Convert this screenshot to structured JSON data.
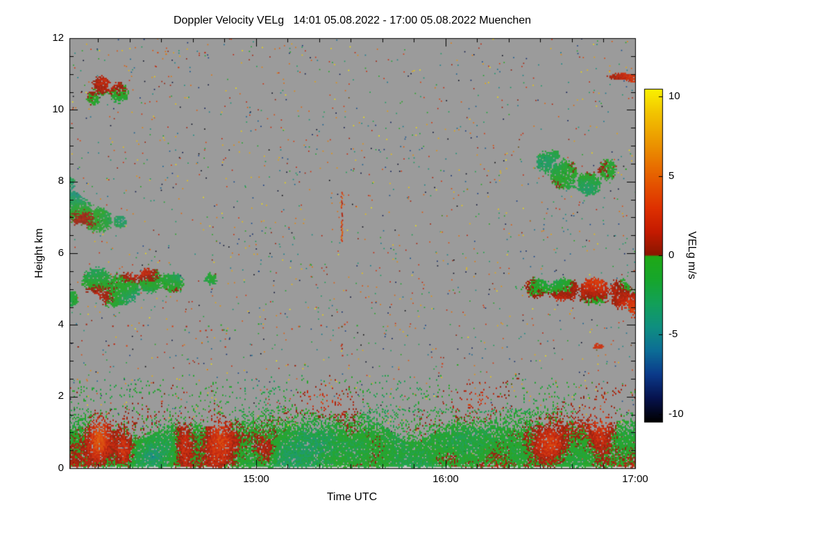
{
  "chart_data": {
    "type": "heatmap",
    "title": "Doppler Velocity VELg   14:01 05.08.2022 - 17:00 05.08.2022 Muenchen",
    "xlabel": "Time UTC",
    "ylabel": "Height km",
    "x_range": [
      14.0167,
      17.0
    ],
    "x_ticks": [
      {
        "v": 15,
        "label": "15:00"
      },
      {
        "v": 16,
        "label": "16:00"
      },
      {
        "v": 17,
        "label": "17:00"
      }
    ],
    "x_minor_step": 0.16667,
    "ylim": [
      0,
      12
    ],
    "y_ticks": [
      {
        "v": 0,
        "label": "0"
      },
      {
        "v": 2,
        "label": "2"
      },
      {
        "v": 4,
        "label": "4"
      },
      {
        "v": 6,
        "label": "6"
      },
      {
        "v": 8,
        "label": "8"
      },
      {
        "v": 10,
        "label": "10"
      },
      {
        "v": 12,
        "label": "12"
      }
    ],
    "y_minor_step": 0.5,
    "background": "#9b9b9b",
    "frame_color": "#000000",
    "ground_band_color": "#c8c8c8",
    "colorbar": {
      "label": "VELg m/s",
      "vmin": -10.5,
      "vmax": 10.5,
      "ticks": [
        {
          "v": 10,
          "label": "10"
        },
        {
          "v": 5,
          "label": "5"
        },
        {
          "v": 0,
          "label": "0"
        },
        {
          "v": -5,
          "label": "-5"
        },
        {
          "v": -10,
          "label": "-10"
        }
      ],
      "stops": [
        [
          -10.5,
          "#000000"
        ],
        [
          -9.0,
          "#06124d"
        ],
        [
          -7.5,
          "#0b3a8a"
        ],
        [
          -6.0,
          "#0c6d96"
        ],
        [
          -4.5,
          "#0f8f80"
        ],
        [
          -3.0,
          "#12a058"
        ],
        [
          -1.5,
          "#16a62c"
        ],
        [
          -0.05,
          "#1fa816"
        ],
        [
          0.05,
          "#8a1600"
        ],
        [
          1.5,
          "#c41a00"
        ],
        [
          3.0,
          "#de3000"
        ],
        [
          5.0,
          "#e65f00"
        ],
        [
          7.0,
          "#eb9300"
        ],
        [
          9.0,
          "#f2c400"
        ],
        [
          10.5,
          "#faf200"
        ]
      ]
    },
    "global_speckles": {
      "count": 2200,
      "vmin": -10.5,
      "vmax": 10.5
    },
    "clouds": [
      {
        "name": "cirrus-left-10.5km",
        "mean": -0.6,
        "amp": 2.0,
        "blobs": [
          [
            14.18,
            10.7,
            0.05,
            0.28
          ],
          [
            14.27,
            10.5,
            0.055,
            0.3
          ],
          [
            14.14,
            10.35,
            0.035,
            0.22
          ]
        ]
      },
      {
        "name": "cloud-right-11km",
        "mean": 2.2,
        "amp": 1.6,
        "blobs": [
          [
            16.92,
            10.95,
            0.08,
            0.1
          ],
          [
            16.99,
            10.9,
            0.05,
            0.12
          ]
        ]
      },
      {
        "name": "cloud-left-7km",
        "mean": -1.0,
        "amp": 2.4,
        "blobs": [
          [
            14.06,
            7.2,
            0.08,
            0.4
          ],
          [
            14.16,
            6.95,
            0.09,
            0.35
          ],
          [
            14.03,
            7.55,
            0.05,
            0.25
          ],
          [
            14.28,
            6.9,
            0.04,
            0.18
          ],
          [
            14.02,
            7.95,
            0.025,
            0.2
          ]
        ]
      },
      {
        "name": "cloud-left-5km",
        "mean": -1.4,
        "amp": 2.4,
        "blobs": [
          [
            14.16,
            5.25,
            0.08,
            0.4
          ],
          [
            14.3,
            5.05,
            0.1,
            0.45
          ],
          [
            14.44,
            5.25,
            0.08,
            0.35
          ],
          [
            14.55,
            5.2,
            0.07,
            0.3
          ],
          [
            14.25,
            4.8,
            0.08,
            0.3
          ],
          [
            14.76,
            5.3,
            0.035,
            0.18
          ],
          [
            14.03,
            4.75,
            0.03,
            0.25
          ]
        ]
      },
      {
        "name": "cloud-right-8km",
        "mean": -0.9,
        "amp": 2.5,
        "blobs": [
          [
            16.52,
            8.55,
            0.05,
            0.3
          ],
          [
            16.62,
            8.2,
            0.08,
            0.45
          ],
          [
            16.75,
            7.95,
            0.07,
            0.35
          ],
          [
            16.85,
            8.35,
            0.05,
            0.3
          ],
          [
            16.57,
            8.75,
            0.03,
            0.15
          ]
        ]
      },
      {
        "name": "cloud-right-5km",
        "mean": 0.2,
        "amp": 2.4,
        "blobs": [
          [
            16.48,
            5.05,
            0.07,
            0.3
          ],
          [
            16.62,
            5.0,
            0.09,
            0.35
          ],
          [
            16.78,
            4.95,
            0.09,
            0.4
          ],
          [
            16.92,
            4.9,
            0.06,
            0.45
          ],
          [
            16.99,
            4.6,
            0.035,
            0.4
          ]
        ]
      },
      {
        "name": "blob-right-3.4km",
        "mean": 2.4,
        "amp": 1.0,
        "blobs": [
          [
            16.8,
            3.42,
            0.03,
            0.09
          ]
        ]
      }
    ],
    "boundary_layer": {
      "h_top": 2.6,
      "base_mean": -1.1,
      "jitter": 2.2,
      "warm_patches": [
        [
          14.17,
          0.9,
          0.05,
          0.7,
          4.0
        ],
        [
          14.3,
          0.45,
          0.045,
          0.45,
          3.2
        ],
        [
          14.62,
          0.8,
          0.05,
          0.8,
          4.0
        ],
        [
          14.8,
          1.0,
          0.09,
          0.9,
          4.5
        ],
        [
          15.05,
          0.45,
          0.05,
          0.45,
          2.8
        ],
        [
          15.45,
          1.8,
          0.13,
          0.5,
          3.2
        ],
        [
          15.5,
          0.95,
          0.1,
          0.55,
          2.4
        ],
        [
          16.2,
          1.8,
          0.13,
          0.5,
          3.0
        ],
        [
          16.55,
          0.6,
          0.07,
          0.5,
          2.8
        ],
        [
          16.82,
          1.0,
          0.07,
          0.8,
          3.4
        ],
        [
          16.0,
          0.3,
          0.09,
          0.3,
          2.2
        ],
        [
          15.3,
          2.0,
          0.08,
          0.35,
          2.6
        ]
      ],
      "cold_patches": [
        [
          15.52,
          0.6,
          0.08,
          0.4,
          -2.2
        ],
        [
          14.45,
          0.35,
          0.05,
          0.3,
          -1.8
        ],
        [
          16.38,
          0.45,
          0.06,
          0.35,
          -2.0
        ],
        [
          15.75,
          0.8,
          0.07,
          0.5,
          -1.5
        ]
      ]
    },
    "speckle_lines": [
      [
        14.03,
        15.6,
        4.02,
        0.05,
        1.5,
        3.0
      ],
      [
        14.03,
        15.3,
        3.87,
        0.04,
        0.5,
        3.0
      ],
      [
        14.03,
        14.95,
        3.45,
        0.04,
        1.5,
        3.0
      ],
      [
        15.05,
        16.65,
        2.9,
        0.025,
        0.0,
        3.0
      ],
      [
        15.55,
        16.45,
        1.62,
        0.5,
        -2.5,
        0.6
      ],
      [
        14.45,
        14.78,
        11.62,
        0.07,
        2.5,
        4.0
      ],
      [
        16.3,
        16.6,
        3.45,
        0.02,
        1.0,
        3.0
      ],
      [
        16.86,
        17.0,
        8.4,
        0.15,
        -0.5,
        2.5
      ],
      [
        16.36,
        16.52,
        5.05,
        0.3,
        -1.0,
        1.0
      ]
    ],
    "fall_streaks": [
      [
        15.45,
        6.35,
        7.75,
        0.7,
        3.5,
        2.5
      ],
      [
        15.45,
        3.15,
        3.55,
        0.3,
        2.5,
        2.0
      ]
    ]
  }
}
